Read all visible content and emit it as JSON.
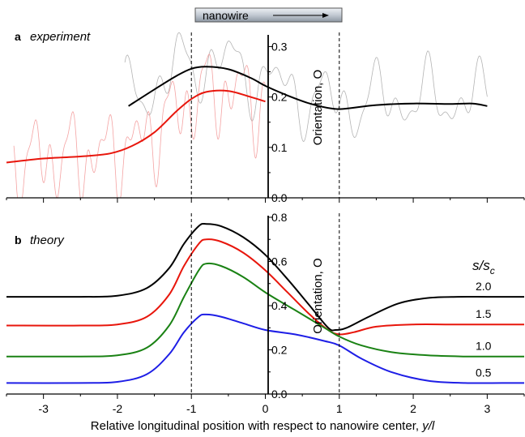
{
  "nanowire_label": "nanowire",
  "xlabel_text": "Relative longitudinal position with respect to nanowire center, ",
  "xlabel_var": "y/l",
  "colors": {
    "black": "#000000",
    "red": "#e8160c",
    "green": "#1a8214",
    "blue": "#1e1ee6",
    "noise_red": "#f4a3a3",
    "noise_gray": "#b4b4b4"
  },
  "chart_data": [
    {
      "panel": "a",
      "panel_word": "experiment",
      "type": "line",
      "ylabel": "Orientation, O",
      "ylim": [
        0,
        0.32
      ],
      "yticks": [
        0.0,
        0.1,
        0.2,
        0.3
      ],
      "ytick_labels": [
        "0.0",
        "0.1",
        "0.2",
        "0.3"
      ],
      "xlim": [
        -3.5,
        3.5
      ],
      "reference_lines_x": [
        -1,
        1
      ],
      "series": [
        {
          "color": "black",
          "x": [
            -1.85,
            -1.5,
            -1.2,
            -1.0,
            -0.8,
            -0.5,
            -0.2,
            0.0,
            0.3,
            0.6,
            0.9,
            1.1,
            1.5,
            2.0,
            2.5,
            2.8,
            3.0
          ],
          "y": [
            0.182,
            0.215,
            0.242,
            0.256,
            0.26,
            0.255,
            0.238,
            0.222,
            0.203,
            0.187,
            0.177,
            0.177,
            0.184,
            0.187,
            0.186,
            0.187,
            0.182
          ]
        },
        {
          "color": "red",
          "x": [
            -3.5,
            -3.0,
            -2.5,
            -2.1,
            -1.8,
            -1.5,
            -1.2,
            -1.0,
            -0.8,
            -0.5,
            -0.2,
            0.0
          ],
          "y": [
            0.07,
            0.078,
            0.082,
            0.088,
            0.103,
            0.13,
            0.172,
            0.196,
            0.21,
            0.212,
            0.2,
            0.191
          ]
        },
        {
          "color": "noise_red",
          "style": "noisy",
          "x_range": [
            -3.4,
            0.0
          ]
        },
        {
          "color": "noise_gray",
          "style": "noisy",
          "x_range": [
            -1.9,
            3.0
          ]
        }
      ]
    },
    {
      "panel": "b",
      "panel_word": "theory",
      "type": "line",
      "ylabel": "Orientation, O",
      "ylim": [
        0,
        0.8
      ],
      "yticks": [
        0.0,
        0.2,
        0.4,
        0.6,
        0.8
      ],
      "ytick_labels": [
        "0.0",
        "0.2",
        "0.4",
        "0.6",
        "0.8"
      ],
      "xlim": [
        -3.5,
        3.5
      ],
      "xticks": [
        -3,
        -2,
        -1,
        0,
        1,
        2,
        3
      ],
      "xtick_labels": [
        "-3",
        "-2",
        "-1",
        "0",
        "1",
        "2",
        "3"
      ],
      "reference_lines_x": [
        -1,
        1
      ],
      "legend_title": "s/s",
      "legend_title_sub": "c",
      "series": [
        {
          "name": "2.0",
          "color": "black",
          "x": [
            -3.5,
            -2.5,
            -2.0,
            -1.6,
            -1.3,
            -1.1,
            -0.9,
            -0.8,
            -0.6,
            -0.3,
            0.0,
            0.3,
            0.6,
            0.85,
            0.95,
            1.1,
            1.4,
            1.8,
            2.2,
            2.6,
            3.0,
            3.5
          ],
          "y": [
            0.44,
            0.44,
            0.445,
            0.48,
            0.57,
            0.68,
            0.76,
            0.77,
            0.76,
            0.71,
            0.63,
            0.52,
            0.4,
            0.3,
            0.29,
            0.3,
            0.35,
            0.41,
            0.435,
            0.44,
            0.44,
            0.44
          ]
        },
        {
          "name": "1.5",
          "color": "red",
          "x": [
            -3.5,
            -2.5,
            -2.0,
            -1.6,
            -1.3,
            -1.1,
            -0.9,
            -0.8,
            -0.6,
            -0.3,
            0.0,
            0.3,
            0.6,
            0.85,
            1.0,
            1.2,
            1.5,
            2.0,
            2.5,
            3.0,
            3.5
          ],
          "y": [
            0.31,
            0.31,
            0.315,
            0.35,
            0.45,
            0.58,
            0.68,
            0.7,
            0.69,
            0.64,
            0.56,
            0.46,
            0.36,
            0.29,
            0.27,
            0.28,
            0.305,
            0.315,
            0.315,
            0.315,
            0.315
          ]
        },
        {
          "name": "1.0",
          "color": "green",
          "x": [
            -3.5,
            -2.5,
            -2.0,
            -1.6,
            -1.3,
            -1.1,
            -0.9,
            -0.8,
            -0.6,
            -0.3,
            0.0,
            0.4,
            0.8,
            1.0,
            1.3,
            1.7,
            2.2,
            2.7,
            3.2,
            3.5
          ],
          "y": [
            0.17,
            0.17,
            0.175,
            0.21,
            0.31,
            0.44,
            0.56,
            0.59,
            0.58,
            0.53,
            0.46,
            0.38,
            0.3,
            0.26,
            0.22,
            0.19,
            0.175,
            0.17,
            0.17,
            0.17
          ]
        },
        {
          "name": "0.5",
          "color": "blue",
          "x": [
            -3.5,
            -2.5,
            -2.0,
            -1.6,
            -1.3,
            -1.1,
            -0.9,
            -0.8,
            -0.6,
            -0.3,
            0.0,
            0.4,
            0.8,
            1.0,
            1.3,
            1.7,
            2.2,
            2.7,
            3.2,
            3.5
          ],
          "y": [
            0.05,
            0.05,
            0.055,
            0.09,
            0.18,
            0.28,
            0.35,
            0.36,
            0.35,
            0.32,
            0.29,
            0.27,
            0.24,
            0.22,
            0.16,
            0.1,
            0.06,
            0.05,
            0.05,
            0.05
          ]
        }
      ]
    }
  ]
}
